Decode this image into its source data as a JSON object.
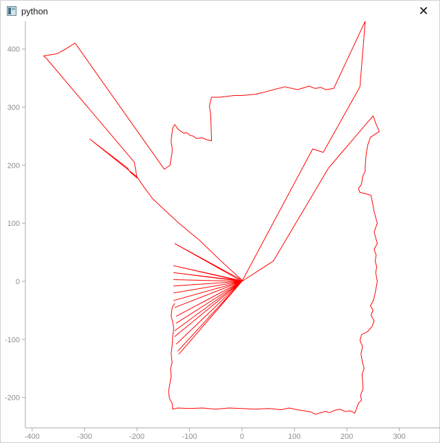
{
  "window": {
    "title": "python",
    "close_glyph": "✕",
    "icon": "python-window-icon"
  },
  "chart_data": {
    "type": "line",
    "title": "",
    "xlabel": "",
    "ylabel": "",
    "xlim": [
      -420,
      380
    ],
    "ylim": [
      -260,
      448
    ],
    "x_ticks": [
      -400,
      -300,
      -200,
      -100,
      0,
      100,
      200,
      300
    ],
    "y_ticks": [
      -200,
      -100,
      0,
      100,
      200,
      300,
      400
    ],
    "grid": false,
    "line_color": "#ff0000",
    "axis_color": "#a8a8a8",
    "tick_label_color": "#8c8c8c",
    "series": [
      {
        "values": [
          [
            -128,
            -38
          ],
          [
            -133,
            -45
          ],
          [
            -135,
            -60
          ],
          [
            -132,
            -70
          ],
          [
            -130,
            -80
          ],
          [
            -132,
            -95
          ],
          [
            -133,
            -110
          ],
          [
            -135,
            -125
          ],
          [
            -133,
            -140
          ],
          [
            -136,
            -150
          ],
          [
            -135,
            -163
          ],
          [
            -137,
            -175
          ],
          [
            -140,
            -190
          ],
          [
            -138,
            -202
          ],
          [
            -133,
            -210
          ],
          [
            -132,
            -220
          ],
          [
            -122,
            -218
          ],
          [
            -100,
            -219
          ],
          [
            -75,
            -218
          ],
          [
            -50,
            -220
          ],
          [
            -25,
            -218
          ],
          [
            0,
            -219
          ],
          [
            25,
            -220
          ],
          [
            50,
            -219
          ],
          [
            75,
            -221
          ],
          [
            90,
            -218
          ],
          [
            105,
            -221
          ],
          [
            120,
            -223
          ],
          [
            132,
            -225
          ],
          [
            140,
            -229
          ],
          [
            150,
            -226
          ],
          [
            160,
            -224
          ],
          [
            167,
            -226
          ],
          [
            177,
            -222
          ],
          [
            187,
            -220
          ],
          [
            196,
            -224
          ],
          [
            207,
            -223
          ],
          [
            215,
            -227
          ],
          [
            219,
            -218
          ],
          [
            222,
            -210
          ],
          [
            228,
            -205
          ],
          [
            226,
            -196
          ],
          [
            231,
            -185
          ],
          [
            230,
            -170
          ],
          [
            229,
            -160
          ],
          [
            233,
            -150
          ],
          [
            230,
            -140
          ],
          [
            227,
            -125
          ],
          [
            230,
            -112
          ],
          [
            225,
            -102
          ],
          [
            228,
            -92
          ],
          [
            240,
            -86
          ],
          [
            248,
            -78
          ],
          [
            252,
            -68
          ],
          [
            246,
            -58
          ],
          [
            250,
            -50
          ],
          [
            245,
            -42
          ],
          [
            250,
            -34
          ],
          [
            253,
            -25
          ],
          [
            255,
            -15
          ],
          [
            258,
            0
          ],
          [
            255,
            15
          ],
          [
            257,
            25
          ],
          [
            254,
            35
          ],
          [
            256,
            45
          ],
          [
            252,
            55
          ],
          [
            258,
            65
          ],
          [
            255,
            75
          ],
          [
            252,
            85
          ],
          [
            258,
            100
          ],
          [
            255,
            110
          ],
          [
            252,
            120
          ],
          [
            249,
            135
          ],
          [
            246,
            148
          ],
          [
            236,
            151
          ],
          [
            225,
            153
          ],
          [
            222,
            160
          ],
          [
            228,
            167
          ],
          [
            230,
            180
          ],
          [
            235,
            190
          ],
          [
            235,
            200
          ],
          [
            236,
            210
          ],
          [
            237,
            220
          ],
          [
            240,
            235
          ],
          [
            245,
            248
          ],
          [
            262,
            258
          ],
          [
            255,
            272
          ],
          [
            250,
            285
          ],
          [
            165,
            195
          ],
          [
            60,
            35
          ],
          [
            0,
            0
          ],
          [
            135,
            228
          ],
          [
            155,
            222
          ],
          [
            225,
            335
          ],
          [
            235,
            448
          ],
          [
            175,
            332
          ],
          [
            160,
            330
          ],
          [
            150,
            334
          ],
          [
            140,
            332
          ],
          [
            128,
            336
          ],
          [
            106,
            330
          ],
          [
            82,
            335
          ],
          [
            60,
            330
          ],
          [
            40,
            325
          ],
          [
            25,
            322
          ],
          [
            0,
            320
          ],
          [
            -15,
            320
          ],
          [
            -42,
            317
          ],
          [
            -58,
            317
          ],
          [
            -62,
            302
          ],
          [
            -60,
            290
          ],
          [
            -59,
            275
          ],
          [
            -58,
            242
          ],
          [
            -68,
            244
          ],
          [
            -75,
            247
          ],
          [
            -86,
            246
          ],
          [
            -93,
            250
          ],
          [
            -100,
            252
          ],
          [
            -105,
            256
          ],
          [
            -111,
            255
          ],
          [
            -122,
            262
          ],
          [
            -128,
            270
          ],
          [
            -132,
            264
          ],
          [
            -134,
            250
          ],
          [
            -135,
            240
          ],
          [
            -133,
            230
          ],
          [
            -133,
            222
          ],
          [
            -135,
            213
          ],
          [
            -137,
            200
          ],
          [
            -140,
            198
          ],
          [
            -148,
            193
          ],
          [
            -318,
            410
          ],
          [
            -340,
            398
          ],
          [
            -352,
            392
          ],
          [
            -366,
            390
          ],
          [
            -378,
            388
          ],
          [
            -372,
            383
          ],
          [
            -205,
            205
          ],
          [
            -200,
            178
          ],
          [
            -213,
            188
          ],
          [
            -218,
            195
          ],
          [
            -290,
            245
          ],
          [
            -200,
            180
          ],
          [
            -185,
            160
          ],
          [
            -170,
            142
          ],
          [
            -150,
            125
          ],
          [
            -120,
            100
          ],
          [
            -80,
            70
          ],
          [
            -40,
            35
          ],
          [
            0,
            2
          ],
          [
            -128,
            65
          ],
          [
            0,
            0
          ],
          [
            -130,
            27
          ],
          [
            0,
            1
          ],
          [
            -130,
            15
          ],
          [
            0,
            0
          ],
          [
            -130,
            3
          ],
          [
            0,
            0
          ],
          [
            -130,
            -8
          ],
          [
            0,
            0
          ],
          [
            -130,
            -20
          ],
          [
            0,
            0
          ],
          [
            -130,
            -33
          ],
          [
            0,
            0
          ],
          [
            -128,
            -45
          ],
          [
            0,
            0
          ],
          [
            -125,
            -60
          ],
          [
            0,
            0
          ],
          [
            -125,
            -72
          ],
          [
            0,
            0
          ],
          [
            -128,
            -85
          ],
          [
            0,
            0
          ],
          [
            -128,
            -95
          ],
          [
            0,
            0
          ],
          [
            -125,
            -108
          ],
          [
            0,
            0
          ],
          [
            -122,
            -120
          ],
          [
            0,
            0
          ],
          [
            -120,
            -125
          ],
          [
            0,
            0
          ]
        ]
      }
    ]
  }
}
